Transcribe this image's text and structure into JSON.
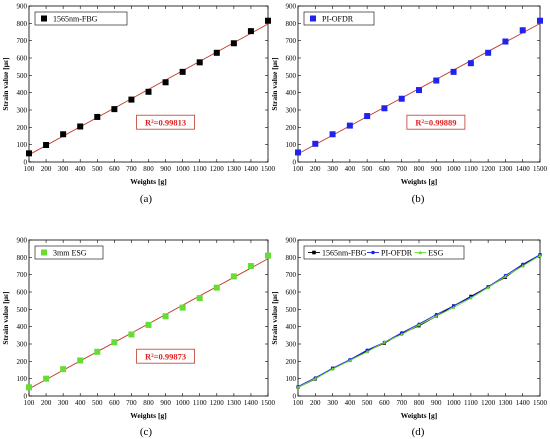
{
  "chart_data": [
    {
      "type": "scatter",
      "panel_label": "(a)",
      "x": [
        100,
        200,
        300,
        400,
        500,
        600,
        700,
        800,
        900,
        1000,
        1100,
        1200,
        1300,
        1400,
        1500
      ],
      "series": [
        {
          "name": "1565nm-FBG",
          "values": [
            50,
            98,
            160,
            205,
            260,
            305,
            360,
            405,
            460,
            520,
            575,
            630,
            685,
            755,
            815
          ],
          "color": "#000000",
          "marker": "square"
        }
      ],
      "fit_line": {
        "color": "#c0392b"
      },
      "annotation": "R²=0.99813",
      "xlabel": "Weights [g]",
      "ylabel": "Strain value [με]",
      "xlim": [
        100,
        1500
      ],
      "ylim": [
        0,
        900
      ],
      "xticks": [
        100,
        200,
        300,
        400,
        500,
        600,
        700,
        800,
        900,
        1000,
        1100,
        1200,
        1300,
        1400,
        1500
      ],
      "yticks": [
        0,
        100,
        200,
        300,
        400,
        500,
        600,
        700,
        800,
        900
      ],
      "legend_position": "top-left"
    },
    {
      "type": "scatter",
      "panel_label": "(b)",
      "x": [
        100,
        200,
        300,
        400,
        500,
        600,
        700,
        800,
        900,
        1000,
        1100,
        1200,
        1300,
        1400,
        1500
      ],
      "series": [
        {
          "name": "PI-OFDR",
          "values": [
            55,
            105,
            160,
            210,
            265,
            310,
            365,
            415,
            470,
            520,
            570,
            630,
            695,
            760,
            815
          ],
          "color": "#2222ee",
          "marker": "square"
        }
      ],
      "fit_line": {
        "color": "#c0392b"
      },
      "annotation": "R²=0.99889",
      "xlabel": "Weights [g]",
      "ylabel": "Strain value [με]",
      "xlim": [
        100,
        1500
      ],
      "ylim": [
        0,
        900
      ],
      "xticks": [
        100,
        200,
        300,
        400,
        500,
        600,
        700,
        800,
        900,
        1000,
        1100,
        1200,
        1300,
        1400,
        1500
      ],
      "yticks": [
        0,
        100,
        200,
        300,
        400,
        500,
        600,
        700,
        800,
        900
      ],
      "legend_position": "top-left"
    },
    {
      "type": "scatter",
      "panel_label": "(c)",
      "x": [
        100,
        200,
        300,
        400,
        500,
        600,
        700,
        800,
        900,
        1000,
        1100,
        1200,
        1300,
        1400,
        1500
      ],
      "series": [
        {
          "name": "3mm ESG",
          "values": [
            50,
            100,
            155,
            205,
            255,
            310,
            355,
            410,
            460,
            510,
            565,
            625,
            690,
            750,
            810
          ],
          "color": "#66dd33",
          "marker": "square"
        }
      ],
      "fit_line": {
        "color": "#c0392b"
      },
      "annotation": "R²=0.99873",
      "xlabel": "Weights [g]",
      "ylabel": "Strain value [με]",
      "xlim": [
        100,
        1500
      ],
      "ylim": [
        0,
        900
      ],
      "xticks": [
        100,
        200,
        300,
        400,
        500,
        600,
        700,
        800,
        900,
        1000,
        1100,
        1200,
        1300,
        1400,
        1500
      ],
      "yticks": [
        0,
        100,
        200,
        300,
        400,
        500,
        600,
        700,
        800,
        900
      ],
      "legend_position": "top-left"
    },
    {
      "type": "line",
      "panel_label": "(d)",
      "x": [
        100,
        200,
        300,
        400,
        500,
        600,
        700,
        800,
        900,
        1000,
        1100,
        1200,
        1300,
        1400,
        1500
      ],
      "series": [
        {
          "name": "1565nm-FBG",
          "values": [
            50,
            98,
            160,
            205,
            260,
            305,
            360,
            405,
            460,
            520,
            575,
            630,
            685,
            755,
            815
          ],
          "color": "#000000",
          "marker": "square"
        },
        {
          "name": "PI-OFDR",
          "values": [
            55,
            105,
            160,
            210,
            265,
            310,
            365,
            415,
            470,
            520,
            570,
            630,
            695,
            760,
            815
          ],
          "color": "#2222ee",
          "marker": "circle"
        },
        {
          "name": "ESG",
          "values": [
            50,
            100,
            155,
            205,
            255,
            310,
            355,
            410,
            460,
            510,
            565,
            625,
            690,
            750,
            810
          ],
          "color": "#66dd33",
          "marker": "triangle"
        }
      ],
      "xlabel": "Weights [g]",
      "ylabel": "Strain value [με]",
      "xlim": [
        100,
        1500
      ],
      "ylim": [
        0,
        900
      ],
      "xticks": [
        100,
        200,
        300,
        400,
        500,
        600,
        700,
        800,
        900,
        1000,
        1100,
        1200,
        1300,
        1400,
        1500
      ],
      "yticks": [
        0,
        100,
        200,
        300,
        400,
        500,
        600,
        700,
        800,
        900
      ],
      "legend_position": "top-left"
    }
  ]
}
